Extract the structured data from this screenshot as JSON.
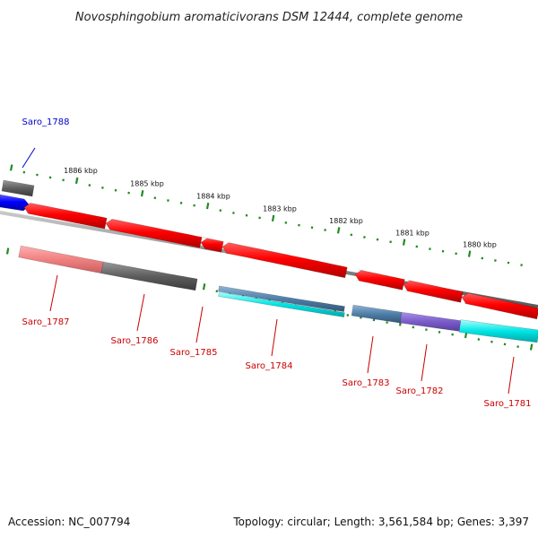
{
  "title": "Novosphingobium aromaticivorans DSM 12444, complete genome",
  "footer": {
    "accession": "Accession: NC_007794",
    "summary": "Topology: circular; Length: 3,561,584 bp; Genes: 3,397"
  },
  "scale_labels": [
    "1886 kbp",
    "1885 kbp",
    "1884 kbp",
    "1883 kbp",
    "1882 kbp",
    "1881 kbp",
    "1880 kbp"
  ],
  "genes": [
    {
      "name": "Saro_1788",
      "color": "#0000cc"
    },
    {
      "name": "Saro_1787",
      "color": "#cc0000"
    },
    {
      "name": "Saro_1786",
      "color": "#cc0000"
    },
    {
      "name": "Saro_1785",
      "color": "#cc0000"
    },
    {
      "name": "Saro_1784",
      "color": "#cc0000"
    },
    {
      "name": "Saro_1783",
      "color": "#cc0000"
    },
    {
      "name": "Saro_1782",
      "color": "#cc0000"
    },
    {
      "name": "Saro_1781",
      "color": "#cc0000"
    }
  ],
  "colors": {
    "forward_strand": "#ff0000",
    "reverse_strand": "#0000ff",
    "tick": "#228b22",
    "backbone": "#8c8c8c",
    "cds_gray": "#666666",
    "cds_pink": "#f08080",
    "cds_cyan": "#00e5e5",
    "cds_steel": "#4f7fa8",
    "cds_purple": "#7a5cc8"
  }
}
